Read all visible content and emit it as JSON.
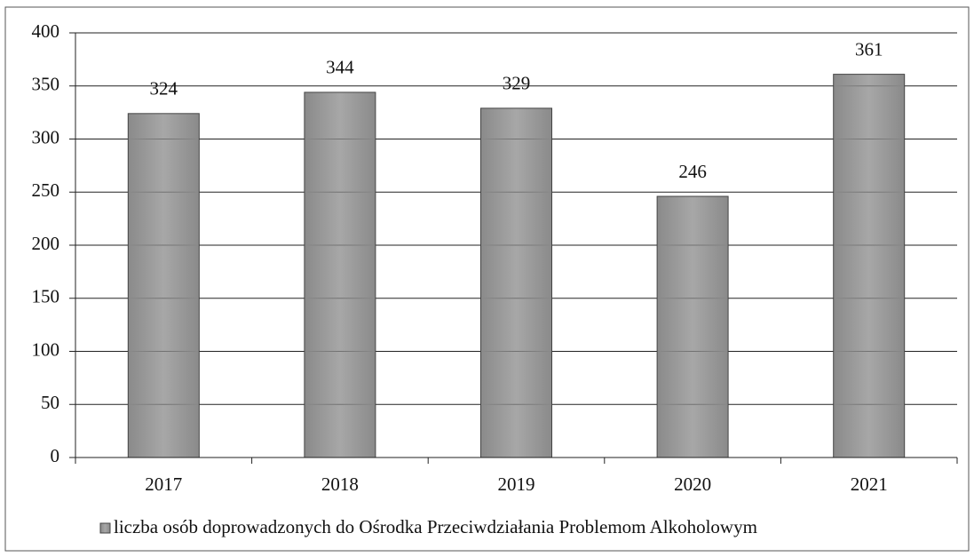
{
  "chart_data": {
    "type": "bar",
    "categories": [
      "2017",
      "2018",
      "2019",
      "2020",
      "2021"
    ],
    "series": [
      {
        "name": "liczba osób doprowadzonych do Ośrodka Przeciwdziałania Problemom Alkoholowym",
        "color": "#8a8a8a",
        "values": [
          324,
          344,
          329,
          246,
          361
        ]
      }
    ],
    "ylim": [
      0,
      400
    ],
    "yticks": [
      0,
      50,
      100,
      150,
      200,
      250,
      300,
      350,
      400
    ],
    "grid": true,
    "legend": "bottom"
  }
}
